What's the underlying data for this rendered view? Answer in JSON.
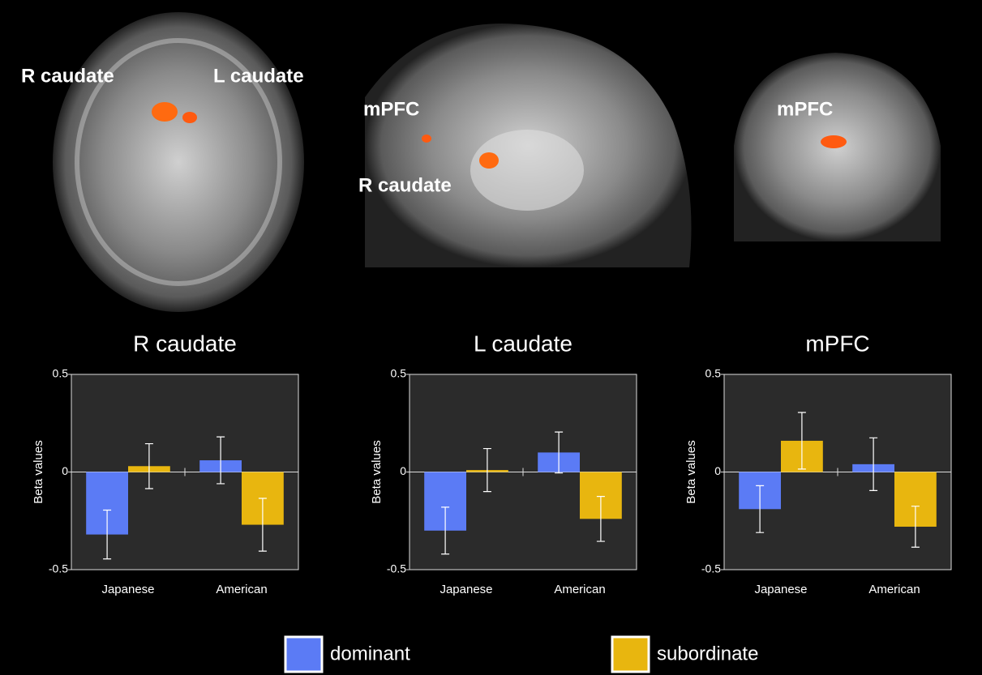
{
  "image_labels": [
    "R caudate",
    "L caudate",
    "mPFC",
    "R caudate",
    "mPFC"
  ],
  "chart_data": [
    {
      "type": "bar",
      "title": "R caudate",
      "ylabel": "Beta values",
      "categories": [
        "Japanese",
        "American"
      ],
      "ylim": [
        -0.5,
        0.5
      ],
      "yticks": [
        -0.5,
        0,
        0.5
      ],
      "series": [
        {
          "name": "dominant",
          "color": "#5b7bf5",
          "values": [
            -0.32,
            0.06
          ],
          "errors": [
            0.125,
            0.12
          ]
        },
        {
          "name": "subordinate",
          "color": "#e8b60f",
          "values": [
            0.03,
            -0.27
          ],
          "errors": [
            0.115,
            0.135
          ]
        }
      ]
    },
    {
      "type": "bar",
      "title": "L caudate",
      "ylabel": "Beta values",
      "categories": [
        "Japanese",
        "American"
      ],
      "ylim": [
        -0.5,
        0.5
      ],
      "yticks": [
        -0.5,
        0,
        0.5
      ],
      "series": [
        {
          "name": "dominant",
          "color": "#5b7bf5",
          "values": [
            -0.3,
            0.1
          ],
          "errors": [
            0.12,
            0.105
          ]
        },
        {
          "name": "subordinate",
          "color": "#e8b60f",
          "values": [
            0.01,
            -0.24
          ],
          "errors": [
            0.11,
            0.115
          ]
        }
      ]
    },
    {
      "type": "bar",
      "title": "mPFC",
      "ylabel": "Beta values",
      "categories": [
        "Japanese",
        "American"
      ],
      "ylim": [
        -0.5,
        0.5
      ],
      "yticks": [
        -0.5,
        0,
        0.5
      ],
      "series": [
        {
          "name": "dominant",
          "color": "#5b7bf5",
          "values": [
            -0.19,
            0.04
          ],
          "errors": [
            0.12,
            0.135
          ]
        },
        {
          "name": "subordinate",
          "color": "#e8b60f",
          "values": [
            0.16,
            -0.28
          ],
          "errors": [
            0.145,
            0.105
          ]
        }
      ]
    }
  ]
}
